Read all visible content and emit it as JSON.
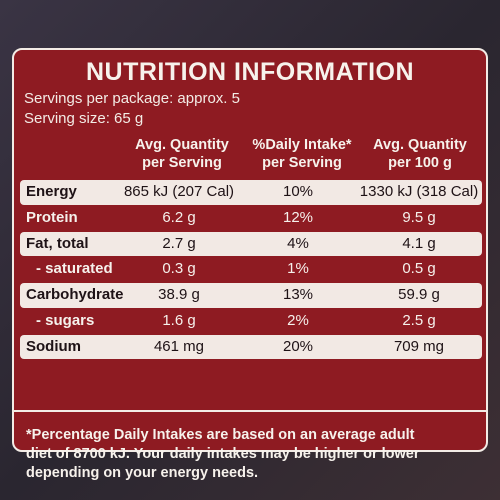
{
  "panel": {
    "title": "NUTRITION INFORMATION",
    "servings_per_package": "Servings per package: approx. 5",
    "serving_size": "Serving size: 65 g"
  },
  "columns": [
    {
      "line1": "Avg. Quantity",
      "line2": "per Serving"
    },
    {
      "line1": "%Daily Intake*",
      "line2": "per Serving"
    },
    {
      "line1": "Avg. Quantity",
      "line2": "per 100 g"
    }
  ],
  "rows": [
    {
      "label": "Energy",
      "per_serving": "865 kJ (207 Cal)",
      "daily_intake": "10%",
      "per_100g": "1330 kJ (318 Cal)"
    },
    {
      "label": "Protein",
      "per_serving": "6.2 g",
      "daily_intake": "12%",
      "per_100g": "9.5 g"
    },
    {
      "label": "Fat, total",
      "per_serving": "2.7 g",
      "daily_intake": "4%",
      "per_100g": "4.1 g"
    },
    {
      "label": "- saturated",
      "per_serving": "0.3 g",
      "daily_intake": "1%",
      "per_100g": "0.5 g"
    },
    {
      "label": "Carbohydrate",
      "per_serving": "38.9 g",
      "daily_intake": "13%",
      "per_100g": "59.9 g"
    },
    {
      "label": "- sugars",
      "per_serving": "1.6 g",
      "daily_intake": "2%",
      "per_100g": "2.5 g"
    },
    {
      "label": "Sodium",
      "per_serving": "461 mg",
      "daily_intake": "20%",
      "per_100g": "709 mg"
    }
  ],
  "footnote": {
    "line1": "*Percentage Daily Intakes are based on an average adult",
    "line2": "diet of 8700 kJ. Your daily intakes may be higher or lower",
    "line3": "depending on your energy needs."
  },
  "colors": {
    "panel": "#8e1b22",
    "shaded_row": "#f2e9e4",
    "text_light": "#f6f1ec",
    "text_dark": "#1e1216"
  }
}
